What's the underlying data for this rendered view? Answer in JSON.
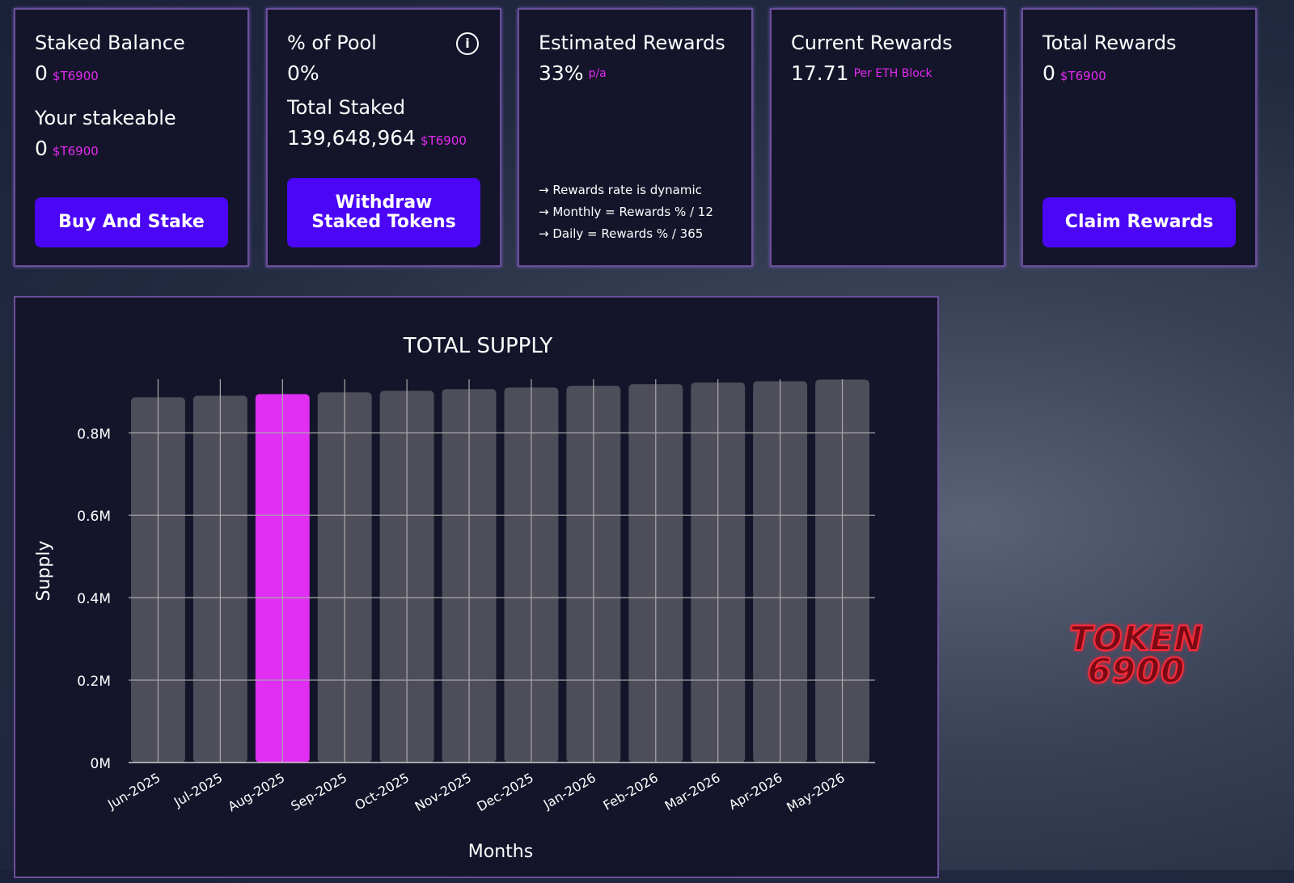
{
  "cards": {
    "staked": {
      "title": "Staked Balance",
      "value": "0",
      "unit": "$T6900",
      "title2": "Your stakeable",
      "value2": "0",
      "unit2": "$T6900",
      "button": "Buy And Stake"
    },
    "pool": {
      "title": "% of Pool",
      "value": "0%",
      "title2": "Total Staked",
      "value2": "139,648,964",
      "unit2": "$T6900",
      "button_line1": "Withdraw",
      "button_line2": "Staked Tokens",
      "icon": "info-icon"
    },
    "estimated": {
      "title": "Estimated Rewards",
      "value": "33%",
      "unit": "p/a",
      "notes": [
        "→ Rewards rate is dynamic",
        "→ Monthly = Rewards % / 12",
        "→ Daily = Rewards % / 365"
      ]
    },
    "current": {
      "title": "Current Rewards",
      "value": "17.71",
      "unit": "Per ETH Block"
    },
    "total": {
      "title": "Total Rewards",
      "value": "0",
      "unit": "$T6900",
      "button": "Claim Rewards"
    }
  },
  "colors": {
    "accent": "#e22bf0",
    "button": "#4a06f5",
    "bar": "#4e4e5a",
    "highlight": "#e02ef2"
  },
  "logo": {
    "line1": "TOKEN",
    "line2": "6900"
  },
  "chart_data": {
    "type": "bar",
    "title": "TOTAL SUPPLY",
    "xlabel": "Months",
    "ylabel": "Supply",
    "categories": [
      "Jun-2025",
      "Jul-2025",
      "Aug-2025",
      "Sep-2025",
      "Oct-2025",
      "Nov-2025",
      "Dec-2025",
      "Jan-2026",
      "Feb-2026",
      "Mar-2026",
      "Apr-2026",
      "May-2026"
    ],
    "values": [
      886000,
      890000,
      894000,
      898000,
      902000,
      906000,
      910000,
      914000,
      918000,
      922000,
      925000,
      929000
    ],
    "highlight_index": 2,
    "ylim": [
      0,
      930000
    ],
    "yticks": [
      {
        "v": 0,
        "label": "0M"
      },
      {
        "v": 200000,
        "label": "0.2M"
      },
      {
        "v": 400000,
        "label": "0.4M"
      },
      {
        "v": 600000,
        "label": "0.6M"
      },
      {
        "v": 800000,
        "label": "0.8M"
      }
    ],
    "grid": true
  }
}
